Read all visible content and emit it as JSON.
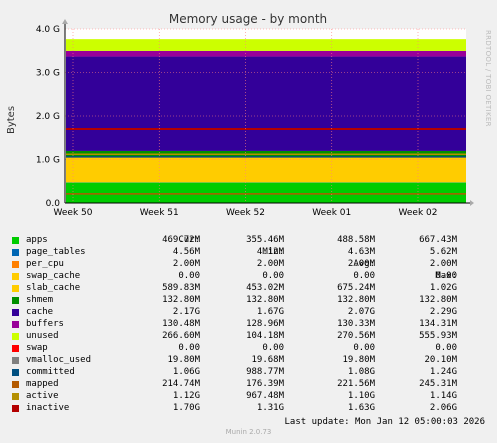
{
  "chart_data": {
    "type": "area",
    "title": "Memory usage - by month",
    "ylabel": "Bytes",
    "side_label": "RRDTOOL / TOBI OETIKER",
    "ylim": [
      0,
      4.0
    ],
    "y_unit": "G",
    "y_ticks": [
      "0.0",
      "1.0 G",
      "2.0 G",
      "3.0 G",
      "4.0 G"
    ],
    "x_ticks": [
      "Week 50",
      "Week 51",
      "Week 52",
      "Week 01",
      "Week 02"
    ],
    "grid": true,
    "legend_headers": {
      "cur": "Cur:",
      "min": "Min:",
      "avg": "Avg:",
      "max": "Max:"
    },
    "series": [
      {
        "name": "apps",
        "color": "#00cc00",
        "cur": "469.72M",
        "min": "355.46M",
        "avg": "488.58M",
        "max": "667.43M",
        "stack_g": 0.47
      },
      {
        "name": "page_tables",
        "color": "#0066b3",
        "cur": "4.56M",
        "min": "4.12M",
        "avg": "4.63M",
        "max": "5.62M",
        "stack_g": 0.0045
      },
      {
        "name": "per_cpu",
        "color": "#ff8000",
        "cur": "2.00M",
        "min": "2.00M",
        "avg": "2.00M",
        "max": "2.00M",
        "stack_g": 0.002
      },
      {
        "name": "swap_cache",
        "color": "#ffcc00",
        "cur": "0.00",
        "min": "0.00",
        "avg": "0.00",
        "max": "0.00",
        "stack_g": 0
      },
      {
        "name": "slab_cache",
        "color": "#ffcc00",
        "cur": "589.83M",
        "min": "453.02M",
        "avg": "675.24M",
        "max": "1.02G",
        "stack_g": 0.59
      },
      {
        "name": "shmem",
        "color": "#008f00",
        "cur": "132.80M",
        "min": "132.80M",
        "avg": "132.80M",
        "max": "132.80M",
        "stack_g": 0.13
      },
      {
        "name": "cache",
        "color": "#330099",
        "cur": "2.17G",
        "min": "1.67G",
        "avg": "2.07G",
        "max": "2.29G",
        "stack_g": 2.17
      },
      {
        "name": "buffers",
        "color": "#990099",
        "cur": "130.48M",
        "min": "128.96M",
        "avg": "130.33M",
        "max": "134.31M",
        "stack_g": 0.13
      },
      {
        "name": "unused",
        "color": "#ccff00",
        "cur": "266.60M",
        "min": "104.18M",
        "avg": "270.56M",
        "max": "555.93M",
        "stack_g": 0.27
      },
      {
        "name": "swap",
        "color": "#ff0000",
        "cur": "0.00",
        "min": "0.00",
        "avg": "0.00",
        "max": "0.00"
      },
      {
        "name": "vmalloc_used",
        "color": "#808080",
        "cur": "19.80M",
        "min": "19.68M",
        "avg": "19.80M",
        "max": "20.10M"
      },
      {
        "name": "committed",
        "color": "#004f80",
        "cur": "1.06G",
        "min": "988.77M",
        "avg": "1.08G",
        "max": "1.24G",
        "line_g": 1.06
      },
      {
        "name": "mapped",
        "color": "#b35a00",
        "cur": "214.74M",
        "min": "176.39M",
        "avg": "221.56M",
        "max": "245.31M",
        "line_g": 0.21
      },
      {
        "name": "active",
        "color": "#b38f00",
        "cur": "1.12G",
        "min": "967.48M",
        "avg": "1.10G",
        "max": "1.14G",
        "line_g": 1.12
      },
      {
        "name": "inactive",
        "color": "#b30000",
        "cur": "1.70G",
        "min": "1.31G",
        "avg": "1.63G",
        "max": "2.06G",
        "line_g": 1.7
      }
    ]
  },
  "footer": {
    "last_update": "Last update: Mon Jan 12 05:00:03 2026",
    "munin": "Munin 2.0.73"
  }
}
